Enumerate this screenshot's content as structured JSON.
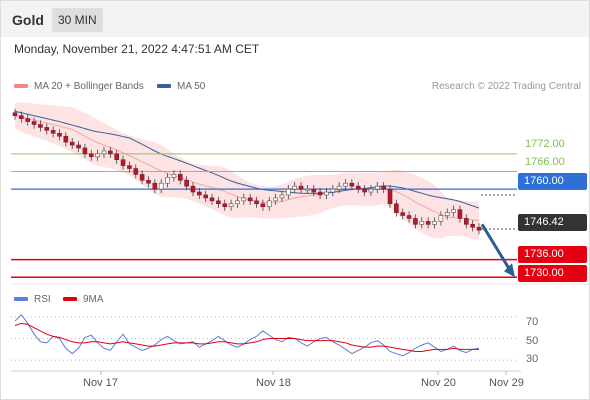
{
  "header": {
    "symbol": "Gold",
    "timeframe": "30 MIN"
  },
  "datetime": "Monday, November 21, 2022 4:47:51 AM CET",
  "legend": {
    "bb_label": "MA 20 + Bollinger Bands",
    "bb_color": "#f08a8a",
    "ma50_label": "MA 50",
    "ma50_color": "#3a5f9e",
    "credit": "Research © 2022 Trading Central"
  },
  "levels": {
    "r2": "1772.00",
    "r1": "1766.00",
    "pivot": "1760.00",
    "last": "1746.42",
    "s1": "1736.00",
    "s2": "1730.00"
  },
  "colors": {
    "resistance": "#8cc55f",
    "pivot": "#2e6fd8",
    "support": "#e40010",
    "arrow": "#2d5b93",
    "rsi": "#5b7fd6",
    "rsi_ma": "#e40010"
  },
  "rsi_panel": {
    "rsi_label": "RSI",
    "ma_label": "9MA",
    "ticks": [
      "70",
      "50",
      "30"
    ]
  },
  "x_axis": [
    "Nov 17",
    "Nov 18",
    "Nov 20",
    "Nov 29"
  ],
  "chart_data": [
    {
      "type": "candlestick",
      "title": "Gold 30 MIN",
      "ylim": [
        1727,
        1790
      ],
      "price_levels": [
        1772.0,
        1766.0,
        1760.0,
        1746.42,
        1736.0,
        1730.0
      ],
      "close_series": [
        1785,
        1784,
        1783,
        1782,
        1781,
        1780,
        1779,
        1778,
        1776,
        1775,
        1774,
        1772,
        1771,
        1772,
        1773,
        1772,
        1770,
        1768,
        1767,
        1765,
        1763,
        1762,
        1760,
        1762,
        1764,
        1765,
        1763,
        1761,
        1759,
        1758,
        1757,
        1756,
        1755,
        1754,
        1755,
        1756,
        1757,
        1756,
        1755,
        1754,
        1756,
        1757,
        1758,
        1760,
        1761,
        1760,
        1760,
        1759,
        1758,
        1759,
        1760,
        1761,
        1762,
        1761,
        1760,
        1759,
        1760,
        1761,
        1760,
        1755,
        1752,
        1751,
        1750,
        1748,
        1749,
        1748,
        1749,
        1751,
        1752,
        1753,
        1750,
        1748,
        1747,
        1746
      ]
    },
    {
      "type": "line",
      "series": [
        {
          "name": "RSI",
          "values": [
            66,
            72,
            64,
            54,
            47,
            46,
            52,
            50,
            41,
            36,
            41,
            51,
            53,
            46,
            41,
            39,
            47,
            54,
            45,
            42,
            39,
            41,
            44,
            49,
            52,
            48,
            45,
            46,
            47,
            42,
            45,
            48,
            52,
            48,
            44,
            42,
            45,
            49,
            52,
            57,
            53,
            49,
            47,
            51,
            50,
            46,
            43,
            47,
            50,
            51,
            47,
            44,
            40,
            36,
            39,
            42,
            46,
            48,
            44,
            38,
            36,
            34,
            37,
            41,
            44,
            46,
            42,
            38,
            40,
            43,
            39,
            37,
            40,
            41
          ]
        },
        {
          "name": "9MA",
          "values": [
            62,
            64,
            63,
            60,
            57,
            54,
            52,
            51,
            49,
            47,
            46,
            46,
            47,
            47,
            46,
            45,
            46,
            47,
            46,
            45,
            44,
            43,
            43,
            44,
            45,
            46,
            46,
            46,
            46,
            45,
            45,
            46,
            47,
            47,
            46,
            45,
            45,
            46,
            47,
            49,
            50,
            50,
            50,
            50,
            50,
            49,
            48,
            48,
            48,
            48,
            48,
            47,
            46,
            44,
            43,
            42,
            42,
            43,
            43,
            42,
            41,
            40,
            39,
            38,
            38,
            39,
            40,
            40,
            40,
            41,
            40,
            40,
            40,
            40
          ]
        }
      ],
      "ylim": [
        20,
        80
      ],
      "ticks": [
        70,
        50,
        30
      ]
    }
  ]
}
